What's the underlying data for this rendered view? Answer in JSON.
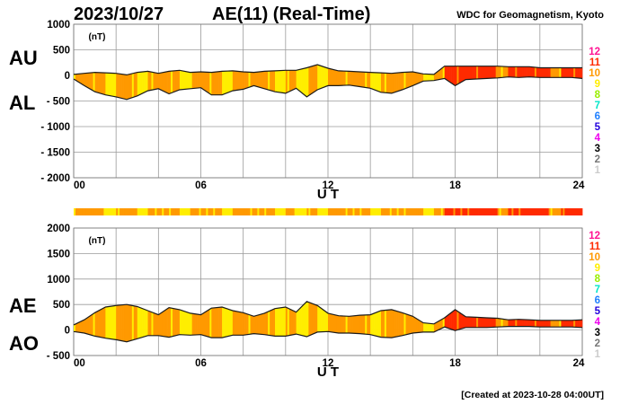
{
  "header": {
    "date": "2023/10/27",
    "title": "AE(11) (Real-Time)",
    "source": "WDC for Geomagnetism, Kyoto"
  },
  "footer": {
    "created": "[Created at 2023-10-28 04:00UT]"
  },
  "legend": {
    "items": [
      {
        "label": "12",
        "color": "#ff1493"
      },
      {
        "label": "11",
        "color": "#ff2a00"
      },
      {
        "label": "10",
        "color": "#ff9900"
      },
      {
        "label": "9",
        "color": "#ffee00"
      },
      {
        "label": "8",
        "color": "#99ee00"
      },
      {
        "label": "7",
        "color": "#00e5c8"
      },
      {
        "label": "6",
        "color": "#1e7fff"
      },
      {
        "label": "5",
        "color": "#2200dd"
      },
      {
        "label": "4",
        "color": "#ee00ee"
      },
      {
        "label": "3",
        "color": "#000000"
      },
      {
        "label": "2",
        "color": "#777777"
      },
      {
        "label": "1",
        "color": "#cccccc"
      }
    ]
  },
  "chart_data": [
    {
      "type": "area",
      "title": "AU / AL",
      "upper_label": "AU",
      "lower_label": "AL",
      "xlabel": "U T",
      "yunit": "(nT)",
      "xlim": [
        0,
        24
      ],
      "ylim": [
        -2000,
        1000
      ],
      "xticks": [
        0,
        6,
        12,
        18,
        24
      ],
      "xtick_labels": [
        "00",
        "06",
        "12",
        "18",
        "24"
      ],
      "yticks": [
        1000,
        500,
        0,
        -500,
        -1000,
        -1500,
        -2000
      ],
      "ytick_labels": [
        "1000",
        "500",
        "0",
        "- 500",
        "- 1000",
        "- 1500",
        "- 2000"
      ],
      "grid": true,
      "x": [
        0,
        0.5,
        1,
        1.5,
        2,
        2.5,
        3,
        3.5,
        4,
        4.5,
        5,
        5.5,
        6,
        6.5,
        7,
        7.5,
        8,
        8.5,
        9,
        9.5,
        10,
        10.5,
        11,
        11.5,
        12,
        12.5,
        13,
        13.5,
        14,
        14.5,
        15,
        15.5,
        16,
        16.5,
        17,
        17.5,
        18,
        18.5,
        19,
        19.5,
        20,
        20.5,
        21,
        21.5,
        22,
        22.5,
        23,
        23.5,
        24
      ],
      "series": [
        {
          "name": "AU",
          "values": [
            20,
            40,
            60,
            50,
            40,
            10,
            60,
            80,
            40,
            80,
            100,
            60,
            70,
            60,
            80,
            90,
            70,
            60,
            80,
            90,
            100,
            100,
            150,
            210,
            140,
            90,
            80,
            70,
            60,
            50,
            40,
            60,
            70,
            30,
            20,
            180,
            180,
            180,
            180,
            180,
            180,
            170,
            170,
            170,
            150,
            150,
            150,
            150,
            150
          ]
        },
        {
          "name": "AL",
          "values": [
            -70,
            -200,
            -320,
            -380,
            -420,
            -470,
            -400,
            -300,
            -260,
            -360,
            -280,
            -260,
            -240,
            -380,
            -380,
            -300,
            -270,
            -200,
            -260,
            -320,
            -350,
            -250,
            -420,
            -280,
            -200,
            -200,
            -190,
            -220,
            -250,
            -330,
            -350,
            -280,
            -200,
            -110,
            -100,
            -60,
            -200,
            -80,
            -70,
            -60,
            -50,
            -30,
            -40,
            -30,
            -40,
            -40,
            -40,
            -40,
            -60
          ]
        }
      ],
      "station_count": [
        10,
        10,
        10,
        9,
        10,
        10,
        9,
        10,
        10,
        10,
        9,
        10,
        10,
        10,
        9,
        10,
        10,
        10,
        10,
        9,
        10,
        9,
        10,
        9,
        10,
        10,
        10,
        10,
        9,
        10,
        10,
        10,
        10,
        9,
        10,
        11,
        11,
        11,
        11,
        11,
        10,
        11,
        11,
        11,
        11,
        10,
        11,
        11,
        11
      ]
    },
    {
      "type": "area",
      "title": "AE / AO",
      "upper_label": "AE",
      "lower_label": "AO",
      "xlabel": "U T",
      "yunit": "(nT)",
      "xlim": [
        0,
        24
      ],
      "ylim": [
        -500,
        2000
      ],
      "xticks": [
        0,
        6,
        12,
        18,
        24
      ],
      "xtick_labels": [
        "00",
        "06",
        "12",
        "18",
        "24"
      ],
      "yticks": [
        2000,
        1500,
        1000,
        500,
        0,
        -500
      ],
      "ytick_labels": [
        "2000",
        "1500",
        "1000",
        "500",
        "0",
        "- 500"
      ],
      "grid": true,
      "x": [
        0,
        0.5,
        1,
        1.5,
        2,
        2.5,
        3,
        3.5,
        4,
        4.5,
        5,
        5.5,
        6,
        6.5,
        7,
        7.5,
        8,
        8.5,
        9,
        9.5,
        10,
        10.5,
        11,
        11.5,
        12,
        12.5,
        13,
        13.5,
        14,
        14.5,
        15,
        15.5,
        16,
        16.5,
        17,
        17.5,
        18,
        18.5,
        19,
        19.5,
        20,
        20.5,
        21,
        21.5,
        22,
        22.5,
        23,
        23.5,
        24
      ],
      "series": [
        {
          "name": "AE",
          "values": [
            100,
            200,
            340,
            450,
            480,
            500,
            460,
            380,
            300,
            440,
            400,
            330,
            300,
            430,
            450,
            380,
            340,
            270,
            330,
            420,
            450,
            350,
            560,
            480,
            330,
            280,
            270,
            290,
            300,
            380,
            400,
            340,
            270,
            140,
            120,
            240,
            400,
            260,
            250,
            240,
            230,
            200,
            210,
            200,
            190,
            190,
            190,
            190,
            200
          ]
        },
        {
          "name": "AO",
          "values": [
            -30,
            -60,
            -120,
            -160,
            -190,
            -230,
            -170,
            -110,
            -110,
            -140,
            -90,
            -100,
            -90,
            -150,
            -150,
            -100,
            -100,
            -70,
            -90,
            -120,
            -120,
            -80,
            -130,
            -40,
            -30,
            -60,
            -60,
            -70,
            -90,
            -140,
            -150,
            -110,
            -60,
            -40,
            -40,
            60,
            -10,
            50,
            50,
            50,
            60,
            70,
            70,
            70,
            60,
            60,
            60,
            60,
            50
          ]
        }
      ]
    }
  ]
}
